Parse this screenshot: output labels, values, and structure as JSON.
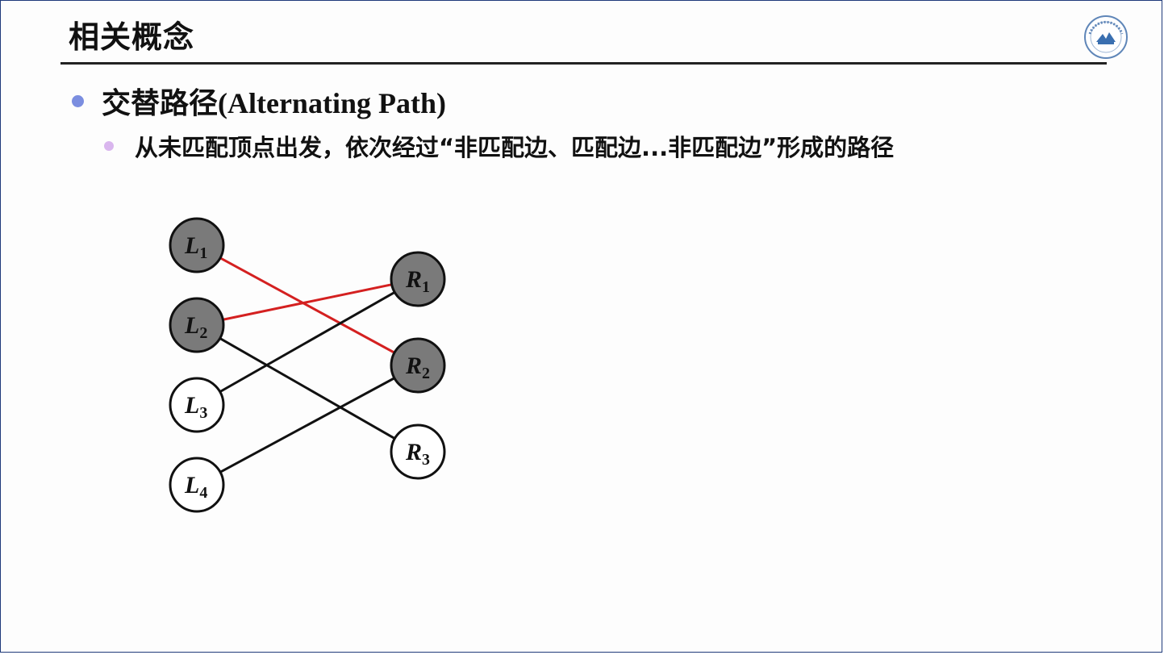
{
  "slide": {
    "title": "相关概念",
    "bullet_main": "交替路径(Alternating Path)",
    "bullet_sub": "从未匹配顶点出发，依次经过“非匹配边、匹配边...非匹配边”形成的路径"
  },
  "graph": {
    "left_nodes": [
      {
        "id": "L1",
        "letter": "L",
        "sub": "1",
        "matched": true
      },
      {
        "id": "L2",
        "letter": "L",
        "sub": "2",
        "matched": true
      },
      {
        "id": "L3",
        "letter": "L",
        "sub": "3",
        "matched": false
      },
      {
        "id": "L4",
        "letter": "L",
        "sub": "4",
        "matched": false
      }
    ],
    "right_nodes": [
      {
        "id": "R1",
        "letter": "R",
        "sub": "1",
        "matched": true
      },
      {
        "id": "R2",
        "letter": "R",
        "sub": "2",
        "matched": true
      },
      {
        "id": "R3",
        "letter": "R",
        "sub": "3",
        "matched": false
      }
    ],
    "edges": [
      {
        "from": "L1",
        "to": "R2",
        "matched": true
      },
      {
        "from": "L2",
        "to": "R1",
        "matched": true
      },
      {
        "from": "L2",
        "to": "R3",
        "matched": false
      },
      {
        "from": "L3",
        "to": "R1",
        "matched": false
      },
      {
        "from": "L4",
        "to": "R2",
        "matched": false
      }
    ]
  },
  "colors": {
    "matched_edge": "#d42020",
    "unmatched_edge": "#111111",
    "matched_node_fill": "#7a7a7a",
    "unmatched_node_fill": "#ffffff",
    "node_stroke": "#111111"
  }
}
